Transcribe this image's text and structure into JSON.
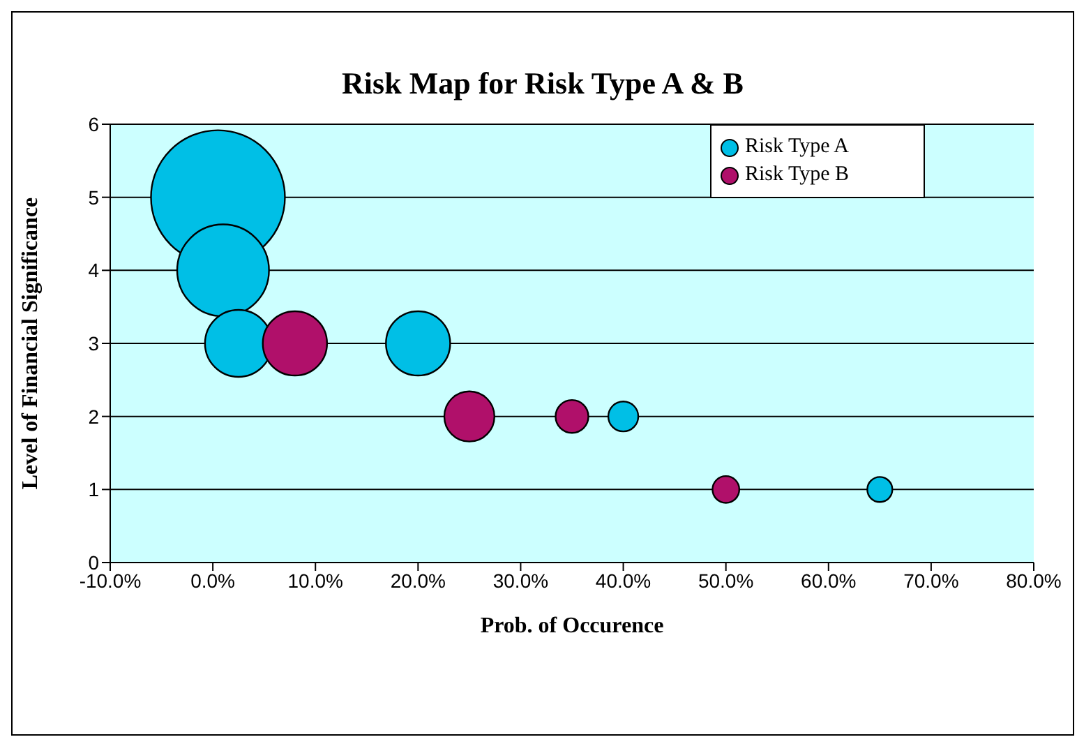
{
  "chart_data": {
    "type": "bubble",
    "title": "Risk Map for Risk Type A & B",
    "xlabel": "Prob. of Occurence",
    "ylabel": "Level of Financial Significance",
    "xlim": [
      -10,
      80
    ],
    "xticks": [
      {
        "value": -10,
        "label": "-10.0%"
      },
      {
        "value": 0,
        "label": "0.0%"
      },
      {
        "value": 10,
        "label": "10.0%"
      },
      {
        "value": 20,
        "label": "20.0%"
      },
      {
        "value": 30,
        "label": "30.0%"
      },
      {
        "value": 40,
        "label": "40.0%"
      },
      {
        "value": 50,
        "label": "50.0%"
      },
      {
        "value": 60,
        "label": "60.0%"
      },
      {
        "value": 70,
        "label": "70.0%"
      },
      {
        "value": 80,
        "label": "80.0%"
      }
    ],
    "ylim": [
      0,
      6
    ],
    "yticks": [
      0,
      1,
      2,
      3,
      4,
      5,
      6
    ],
    "grid": "y",
    "legend": "top right",
    "marker": "circle",
    "series": [
      {
        "name": "Risk Type A",
        "color": "#00bfe6",
        "x": [
          0.5,
          1,
          2.5,
          20,
          40,
          65
        ],
        "values": [
          5,
          4,
          3,
          3,
          2,
          1
        ],
        "sizes": [
          1,
          0.47,
          0.25,
          0.23,
          0.05,
          0.035
        ]
      },
      {
        "name": "Risk Type B",
        "color": "#b0106a",
        "x": [
          8,
          25,
          35,
          50
        ],
        "values": [
          3,
          2,
          2,
          1
        ],
        "sizes": [
          0.23,
          0.14,
          0.06,
          0.04
        ]
      }
    ]
  }
}
